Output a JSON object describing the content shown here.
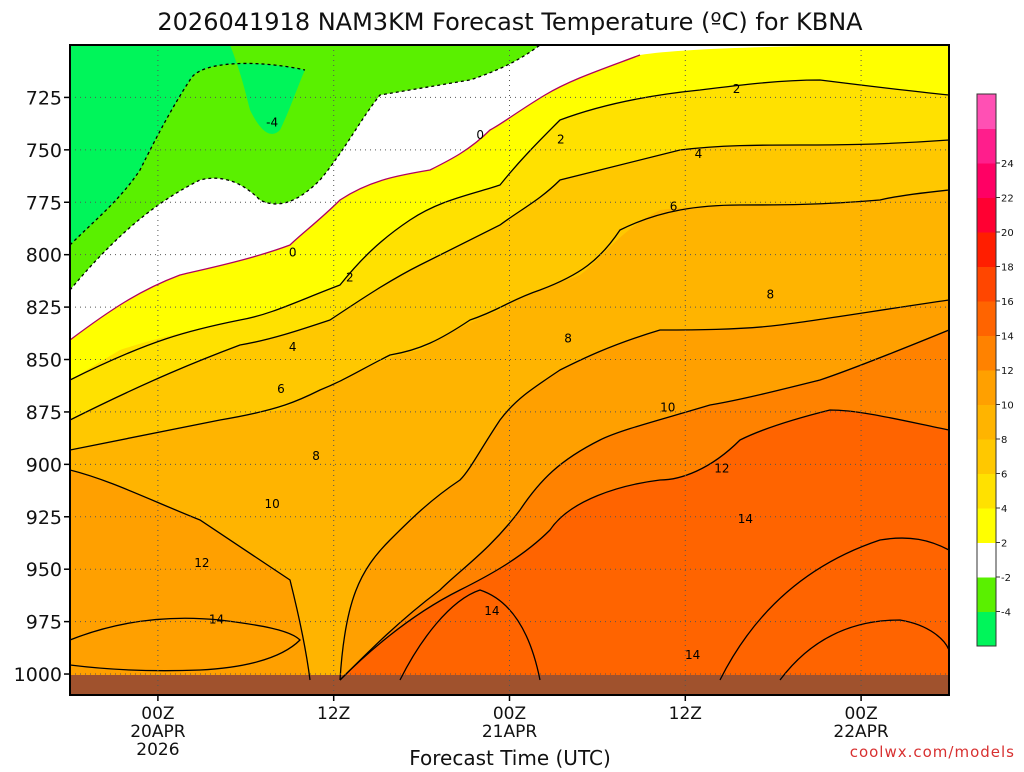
{
  "chart_data": {
    "type": "heatmap",
    "title": "2026041918 NAM3KM Forecast Temperature (ºC) for KBNA",
    "xlabel": "Forecast Time (UTC)",
    "ylabel": "",
    "credit": "coolwx.com/models",
    "x_ticks": [
      {
        "time": 0,
        "lines": [
          "00Z",
          "20APR",
          "2026"
        ]
      },
      {
        "time": 12,
        "lines": [
          "12Z"
        ]
      },
      {
        "time": 24,
        "lines": [
          "00Z",
          "21APR"
        ]
      },
      {
        "time": 36,
        "lines": [
          "12Z"
        ]
      },
      {
        "time": 48,
        "lines": [
          "00Z",
          "22APR"
        ]
      }
    ],
    "xlim_hours": [
      -6,
      54
    ],
    "y_ticks": [
      725,
      750,
      775,
      800,
      825,
      850,
      875,
      900,
      925,
      950,
      975,
      1000
    ],
    "ylim_hpa": [
      700,
      1010
    ],
    "colorbar": {
      "levels": [
        -6,
        -4,
        -2,
        2,
        4,
        6,
        8,
        10,
        12,
        14,
        16,
        18,
        20,
        22,
        24,
        26,
        28
      ],
      "labels": [
        "-4",
        "-2",
        "2",
        "4",
        "6",
        "8",
        "10",
        "12",
        "14",
        "16",
        "18",
        "20",
        "22",
        "24"
      ],
      "colors": [
        "#00f55a",
        "#5af000",
        "#ffffff",
        "#ffff00",
        "#ffe100",
        "#ffc800",
        "#ffb400",
        "#ffa000",
        "#ff8200",
        "#ff6400",
        "#ff4600",
        "#ff1e00",
        "#ff0032",
        "#ff0064",
        "#ff1e8c",
        "#ff50b4"
      ]
    },
    "contour_labels": [
      {
        "value": "-4",
        "time": 7.8,
        "hpa": 737
      },
      {
        "value": "0",
        "time": 22,
        "hpa": 743
      },
      {
        "value": "0",
        "time": 9.2,
        "hpa": 799
      },
      {
        "value": "2",
        "time": 39.5,
        "hpa": 721
      },
      {
        "value": "2",
        "time": 27.5,
        "hpa": 745
      },
      {
        "value": "2",
        "time": 13.1,
        "hpa": 811
      },
      {
        "value": "4",
        "time": 36.9,
        "hpa": 752
      },
      {
        "value": "4",
        "time": 9.2,
        "hpa": 844
      },
      {
        "value": "6",
        "time": 35.2,
        "hpa": 777
      },
      {
        "value": "6",
        "time": 8.4,
        "hpa": 864
      },
      {
        "value": "8",
        "time": 28,
        "hpa": 840
      },
      {
        "value": "8",
        "time": 41.8,
        "hpa": 819
      },
      {
        "value": "8",
        "time": 10.8,
        "hpa": 896
      },
      {
        "value": "10",
        "time": 34.8,
        "hpa": 873
      },
      {
        "value": "10",
        "time": 7.8,
        "hpa": 919
      },
      {
        "value": "12",
        "time": 38.5,
        "hpa": 902
      },
      {
        "value": "12",
        "time": 3,
        "hpa": 947
      },
      {
        "value": "14",
        "time": 40.1,
        "hpa": 926
      },
      {
        "value": "14",
        "time": 22.8,
        "hpa": 970
      },
      {
        "value": "14",
        "time": 4,
        "hpa": 974
      },
      {
        "value": "14",
        "time": 36.5,
        "hpa": 991
      }
    ]
  }
}
